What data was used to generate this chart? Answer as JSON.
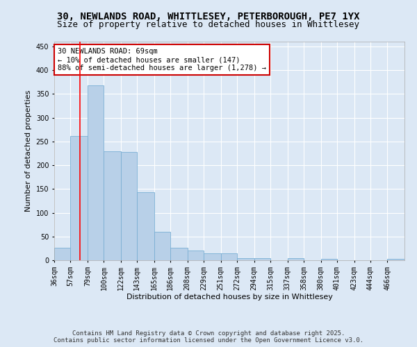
{
  "title_line1": "30, NEWLANDS ROAD, WHITTLESEY, PETERBOROUGH, PE7 1YX",
  "title_line2": "Size of property relative to detached houses in Whittlesey",
  "xlabel": "Distribution of detached houses by size in Whittlesey",
  "ylabel": "Number of detached properties",
  "bins": [
    "36sqm",
    "57sqm",
    "79sqm",
    "100sqm",
    "122sqm",
    "143sqm",
    "165sqm",
    "186sqm",
    "208sqm",
    "229sqm",
    "251sqm",
    "272sqm",
    "294sqm",
    "315sqm",
    "337sqm",
    "358sqm",
    "380sqm",
    "401sqm",
    "423sqm",
    "444sqm",
    "466sqm"
  ],
  "bin_edges": [
    36,
    57,
    79,
    100,
    122,
    143,
    165,
    186,
    208,
    229,
    251,
    272,
    294,
    315,
    337,
    358,
    380,
    401,
    423,
    444,
    466
  ],
  "bar_heights": [
    27,
    261,
    368,
    230,
    228,
    143,
    60,
    27,
    20,
    15,
    15,
    5,
    5,
    0,
    5,
    0,
    3,
    0,
    0,
    0,
    3
  ],
  "bar_color": "#b8d0e8",
  "bar_edge_color": "#7aafd4",
  "red_line_x": 69,
  "annotation_text": "30 NEWLANDS ROAD: 69sqm\n← 10% of detached houses are smaller (147)\n88% of semi-detached houses are larger (1,278) →",
  "annotation_box_color": "#ffffff",
  "annotation_box_edge_color": "#cc0000",
  "ylim": [
    0,
    460
  ],
  "yticks": [
    0,
    50,
    100,
    150,
    200,
    250,
    300,
    350,
    400,
    450
  ],
  "footer_line1": "Contains HM Land Registry data © Crown copyright and database right 2025.",
  "footer_line2": "Contains public sector information licensed under the Open Government Licence v3.0.",
  "background_color": "#dce8f5",
  "plot_bg_color": "#dce8f5",
  "grid_color": "#ffffff",
  "title_fontsize": 10,
  "subtitle_fontsize": 9,
  "axis_label_fontsize": 8,
  "tick_fontsize": 7,
  "annotation_fontsize": 7.5,
  "footer_fontsize": 6.5
}
